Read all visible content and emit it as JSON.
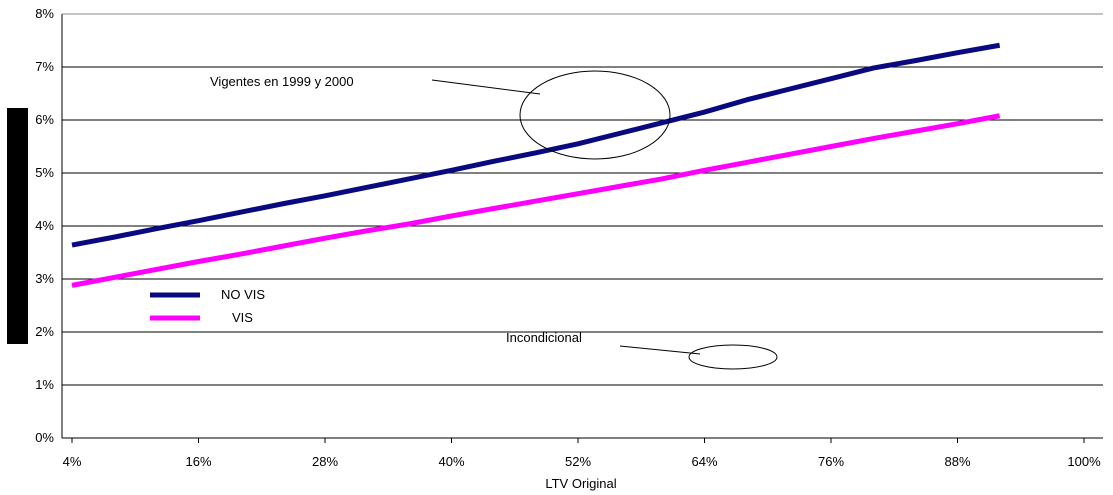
{
  "chart_data": {
    "type": "line",
    "xlabel": "LTV Original",
    "ylabel": "",
    "x_ticks": [
      "4%",
      "16%",
      "28%",
      "40%",
      "52%",
      "64%",
      "76%",
      "88%",
      "100%"
    ],
    "y_ticks": [
      "0%",
      "1%",
      "2%",
      "3%",
      "4%",
      "5%",
      "6%",
      "7%",
      "8%"
    ],
    "xlim": [
      4,
      100
    ],
    "ylim": [
      0,
      8
    ],
    "grid": "horizontal",
    "legend": "left-middle",
    "series": [
      {
        "name": "NO VIS",
        "color": "#0a0a80",
        "x": [
          4,
          8,
          12,
          16,
          20,
          24,
          28,
          32,
          36,
          40,
          44,
          48,
          52,
          56,
          60,
          64,
          68,
          72,
          76,
          80,
          84,
          88,
          92
        ],
        "values": [
          3.64,
          3.79,
          3.95,
          4.1,
          4.26,
          4.42,
          4.57,
          4.73,
          4.89,
          5.05,
          5.22,
          5.38,
          5.55,
          5.75,
          5.95,
          6.15,
          6.38,
          6.58,
          6.78,
          6.98,
          7.12,
          7.27,
          7.41
        ]
      },
      {
        "name": "VIS",
        "color": "#ff00ff",
        "x": [
          4,
          8,
          12,
          16,
          20,
          24,
          28,
          32,
          36,
          40,
          44,
          48,
          52,
          56,
          60,
          64,
          68,
          72,
          76,
          80,
          84,
          88,
          92
        ],
        "values": [
          2.88,
          3.03,
          3.18,
          3.33,
          3.47,
          3.62,
          3.77,
          3.91,
          4.04,
          4.19,
          4.33,
          4.47,
          4.61,
          4.75,
          4.89,
          5.05,
          5.2,
          5.35,
          5.5,
          5.65,
          5.79,
          5.93,
          6.08
        ]
      }
    ],
    "annotations": [
      {
        "text": "Vigentes en  1999 y 2000"
      },
      {
        "text": "Incondicional"
      }
    ]
  }
}
